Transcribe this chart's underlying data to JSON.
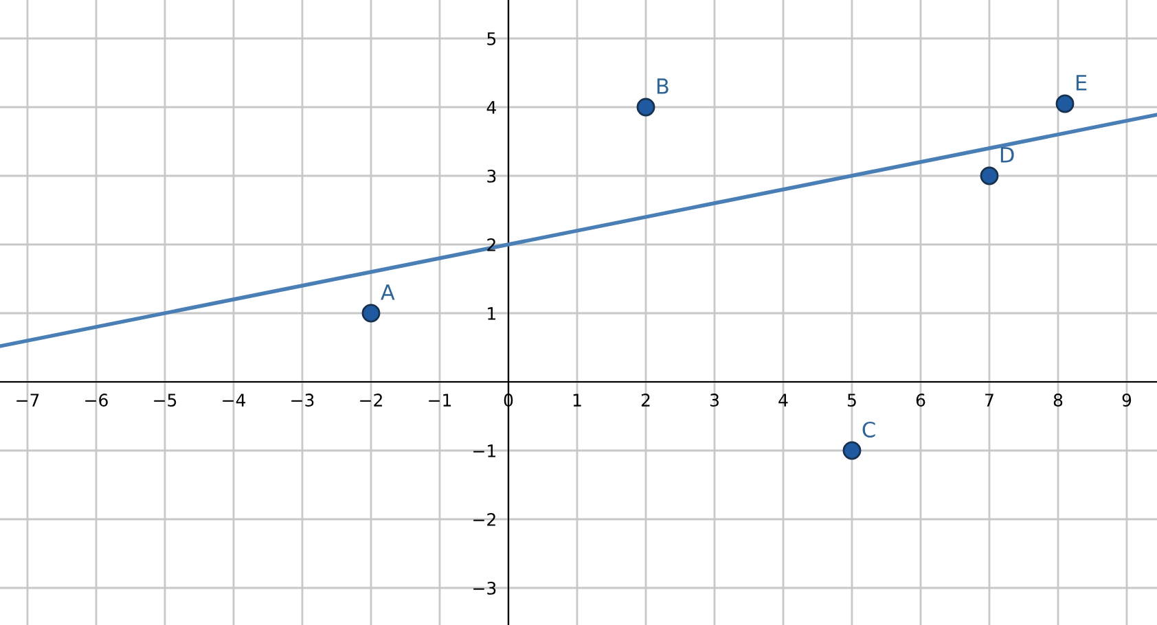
{
  "chart_data": {
    "type": "scatter",
    "x": [
      -2,
      2,
      5,
      7,
      8.1
    ],
    "series": [
      {
        "color": "#1f5aa0",
        "marker": "circle",
        "values": [
          1,
          4,
          -1,
          3,
          4.05
        ]
      },
      {
        "type": "line",
        "color": "#4a7fb5",
        "x": [
          -7.4,
          9.44
        ],
        "values": [
          0.52,
          3.89
        ]
      }
    ],
    "annotations": [
      {
        "text": "A",
        "x": -2,
        "y": 1
      },
      {
        "text": "B",
        "x": 2,
        "y": 4
      },
      {
        "text": "C",
        "x": 5,
        "y": -1
      },
      {
        "text": "D",
        "x": 7,
        "y": 3
      },
      {
        "text": "E",
        "x": 8.1,
        "y": 4.05
      }
    ],
    "xlim": [
      -7.4,
      9.44
    ],
    "ylim": [
      -3.54,
      5.56
    ],
    "xticks": [
      -7,
      -6,
      -5,
      -4,
      -3,
      -2,
      -1,
      0,
      1,
      2,
      3,
      4,
      5,
      6,
      7,
      8,
      9
    ],
    "yticks": [
      -3,
      -2,
      -1,
      {
        "value": 0,
        "label": null
      },
      1,
      2,
      3,
      4,
      5
    ],
    "grid": true,
    "legend": false,
    "line_style": "solid"
  }
}
